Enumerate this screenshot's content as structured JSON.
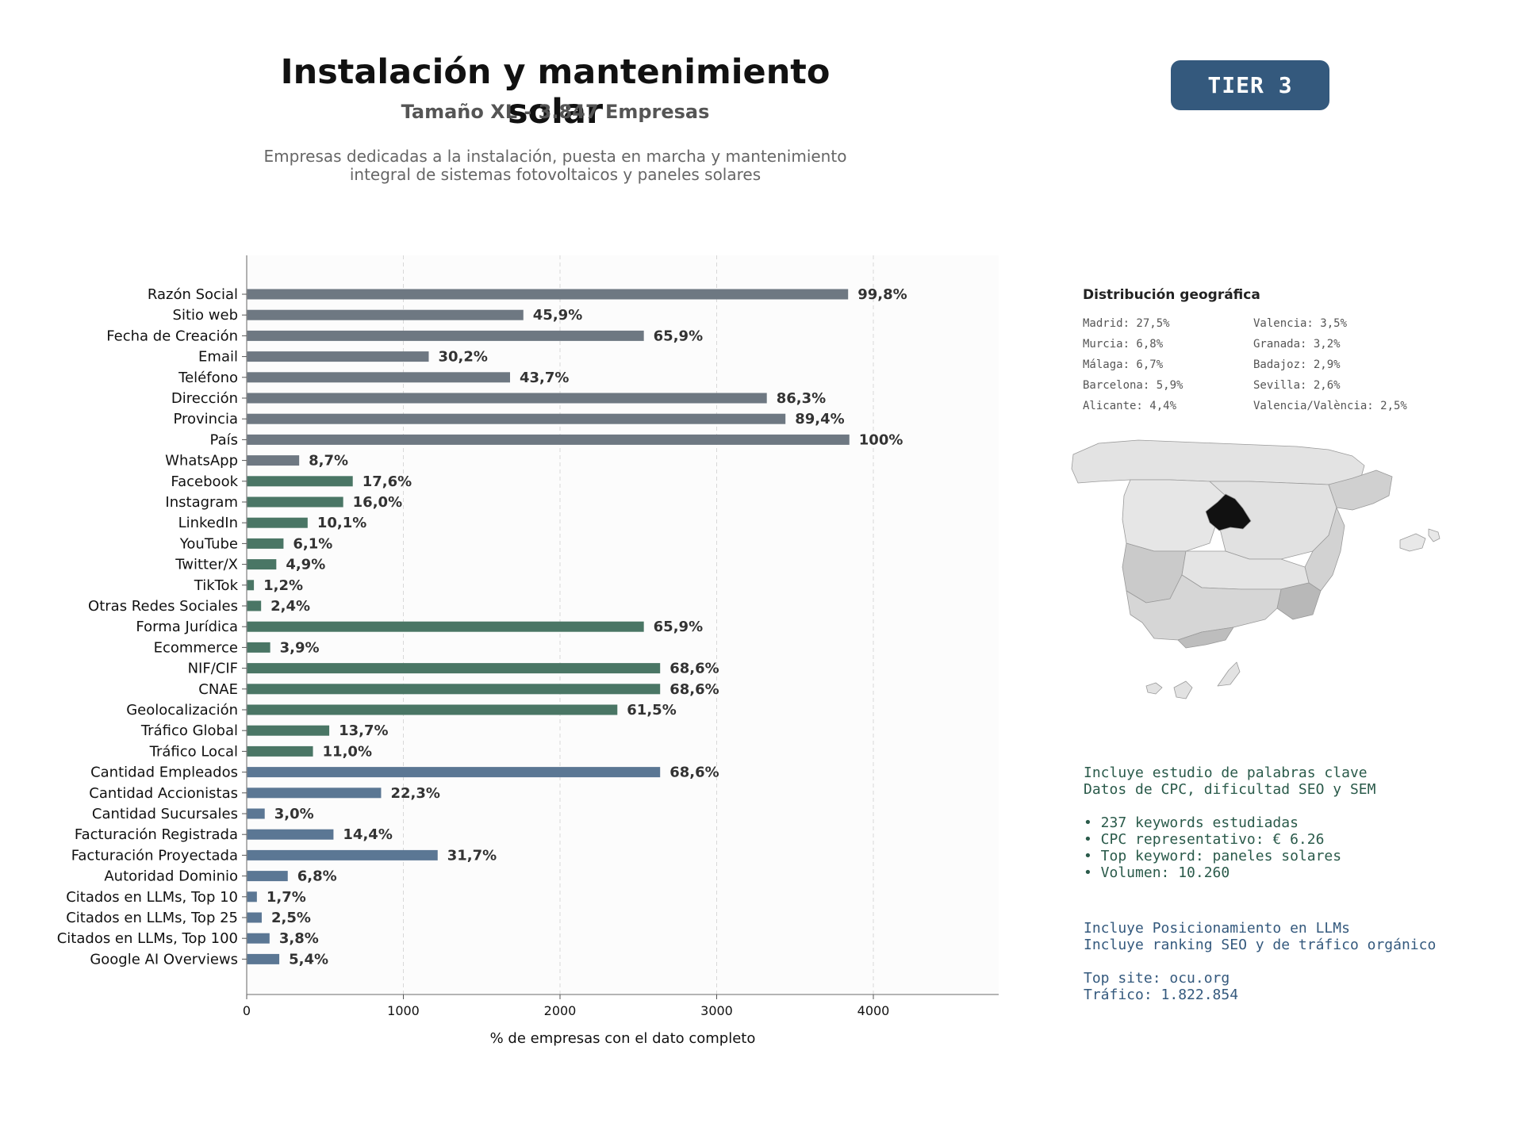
{
  "header": {
    "title": "Instalación y mantenimiento solar",
    "subtitle": "Tamaño XL - 3.847 Empresas",
    "description_line1": "Empresas dedicadas a la instalación, puesta en marcha y mantenimiento",
    "description_line2": "integral de sistemas fotovoltaicos y paneles solares",
    "tier": "TIER 3"
  },
  "chart_data": {
    "type": "bar",
    "orientation": "horizontal",
    "xlabel": "% de empresas con el dato completo",
    "xlim": [
      0,
      4800
    ],
    "xticks": [
      0,
      1000,
      2000,
      3000,
      4000
    ],
    "grid": "vertical-dashed",
    "colors": {
      "gray": "#6e7882",
      "green": "#4a7665",
      "blue": "#5b7794"
    },
    "bars": [
      {
        "category": "Razón Social",
        "value": 3839,
        "label": "99,8%",
        "group": "gray"
      },
      {
        "category": "Sitio web",
        "value": 1766,
        "label": "45,9%",
        "group": "gray"
      },
      {
        "category": "Fecha de Creación",
        "value": 2535,
        "label": "65,9%",
        "group": "gray"
      },
      {
        "category": "Email",
        "value": 1162,
        "label": "30,2%",
        "group": "gray"
      },
      {
        "category": "Teléfono",
        "value": 1681,
        "label": "43,7%",
        "group": "gray"
      },
      {
        "category": "Dirección",
        "value": 3320,
        "label": "86,3%",
        "group": "gray"
      },
      {
        "category": "Provincia",
        "value": 3439,
        "label": "89,4%",
        "group": "gray"
      },
      {
        "category": "País",
        "value": 3847,
        "label": "100%",
        "group": "gray"
      },
      {
        "category": "WhatsApp",
        "value": 335,
        "label": "8,7%",
        "group": "gray"
      },
      {
        "category": "Facebook",
        "value": 677,
        "label": "17,6%",
        "group": "green"
      },
      {
        "category": "Instagram",
        "value": 616,
        "label": "16,0%",
        "group": "green"
      },
      {
        "category": "LinkedIn",
        "value": 389,
        "label": "10,1%",
        "group": "green"
      },
      {
        "category": "YouTube",
        "value": 235,
        "label": "6,1%",
        "group": "green"
      },
      {
        "category": "Twitter/X",
        "value": 189,
        "label": "4,9%",
        "group": "green"
      },
      {
        "category": "TikTok",
        "value": 46,
        "label": "1,2%",
        "group": "green"
      },
      {
        "category": "Otras Redes Sociales",
        "value": 92,
        "label": "2,4%",
        "group": "green"
      },
      {
        "category": "Forma Jurídica",
        "value": 2535,
        "label": "65,9%",
        "group": "green"
      },
      {
        "category": "Ecommerce",
        "value": 150,
        "label": "3,9%",
        "group": "green"
      },
      {
        "category": "NIF/CIF",
        "value": 2639,
        "label": "68,6%",
        "group": "green"
      },
      {
        "category": "CNAE",
        "value": 2639,
        "label": "68,6%",
        "group": "green"
      },
      {
        "category": "Geolocalización",
        "value": 2366,
        "label": "61,5%",
        "group": "green"
      },
      {
        "category": "Tráfico Global",
        "value": 527,
        "label": "13,7%",
        "group": "green"
      },
      {
        "category": "Tráfico Local",
        "value": 423,
        "label": "11,0%",
        "group": "green"
      },
      {
        "category": "Cantidad Empleados",
        "value": 2639,
        "label": "68,6%",
        "group": "blue"
      },
      {
        "category": "Cantidad Accionistas",
        "value": 858,
        "label": "22,3%",
        "group": "blue"
      },
      {
        "category": "Cantidad Sucursales",
        "value": 115,
        "label": "3,0%",
        "group": "blue"
      },
      {
        "category": "Facturación Registrada",
        "value": 554,
        "label": "14,4%",
        "group": "blue"
      },
      {
        "category": "Facturación Proyectada",
        "value": 1219,
        "label": "31,7%",
        "group": "blue"
      },
      {
        "category": "Autoridad Dominio",
        "value": 262,
        "label": "6,8%",
        "group": "blue"
      },
      {
        "category": "Citados en LLMs, Top 10",
        "value": 65,
        "label": "1,7%",
        "group": "blue"
      },
      {
        "category": "Citados en LLMs, Top 25",
        "value": 96,
        "label": "2,5%",
        "group": "blue"
      },
      {
        "category": "Citados en LLMs, Top 100",
        "value": 146,
        "label": "3,8%",
        "group": "blue"
      },
      {
        "category": "Google AI Overviews",
        "value": 208,
        "label": "5,4%",
        "group": "blue"
      }
    ]
  },
  "geo": {
    "title": "Distribución geográfica",
    "col1": [
      "Madrid: 27,5%",
      "Murcia: 6,8%",
      "Málaga: 6,7%",
      "Barcelona: 5,9%",
      "Alicante: 4,4%"
    ],
    "col2": [
      "Valencia: 3,5%",
      "Granada: 3,2%",
      "Badajoz: 2,9%",
      "Sevilla: 2,6%",
      "Valencia/València: 2,5%"
    ]
  },
  "seo": {
    "line1": "Incluye estudio de palabras clave",
    "line2": "Datos de CPC, dificultad SEO y SEM",
    "bullet1": "• 237 keywords estudiadas",
    "bullet2": "• CPC representativo: € 6.26",
    "bullet3": "• Top keyword: paneles solares",
    "bullet4": "• Volumen: 10.260"
  },
  "llm": {
    "line1": "Incluye Posicionamiento en LLMs",
    "line2": "Incluye ranking SEO y de tráfico orgánico",
    "line3": "Top site: ocu.org",
    "line4": "Tráfico: 1.822.854"
  }
}
